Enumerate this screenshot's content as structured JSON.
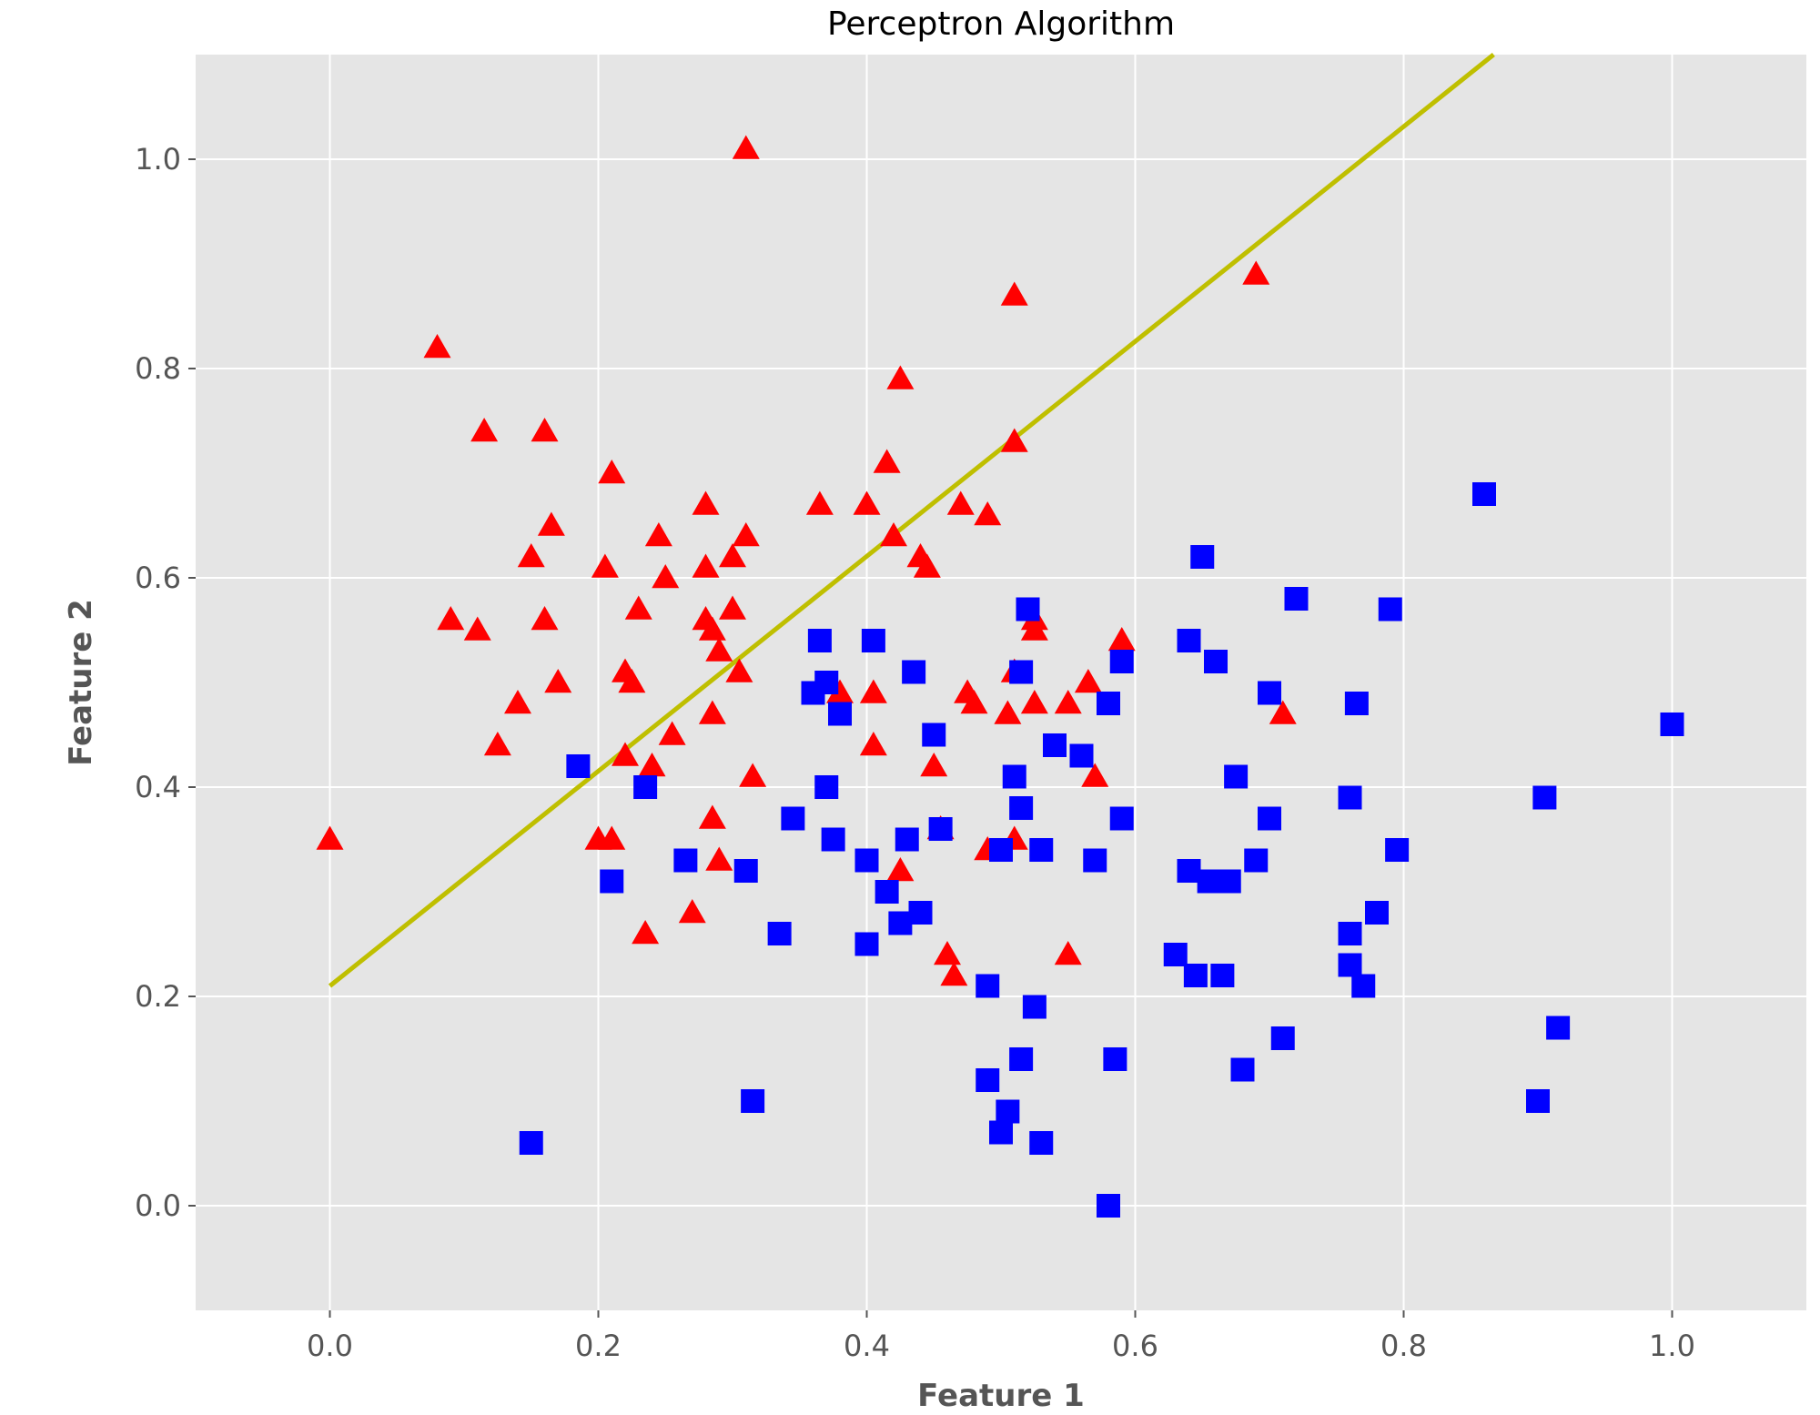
{
  "chart_data": {
    "type": "scatter",
    "title": "Perceptron Algorithm",
    "xlabel": "Feature 1",
    "ylabel": "Feature 2",
    "xlim": [
      -0.1,
      1.1
    ],
    "ylim": [
      -0.1,
      1.1
    ],
    "xticks": [
      "0.0",
      "0.2",
      "0.4",
      "0.6",
      "0.8",
      "1.0"
    ],
    "yticks": [
      "0.0",
      "0.2",
      "0.4",
      "0.6",
      "0.8",
      "1.0"
    ],
    "grid": true,
    "style": "ggplot",
    "background": "#e5e5e5",
    "series": [
      {
        "marker": "triangle",
        "color": "#ff0000",
        "points": [
          [
            0.0,
            0.35
          ],
          [
            0.08,
            0.82
          ],
          [
            0.09,
            0.56
          ],
          [
            0.11,
            0.55
          ],
          [
            0.115,
            0.74
          ],
          [
            0.125,
            0.44
          ],
          [
            0.14,
            0.48
          ],
          [
            0.15,
            0.62
          ],
          [
            0.16,
            0.74
          ],
          [
            0.165,
            0.65
          ],
          [
            0.16,
            0.56
          ],
          [
            0.17,
            0.5
          ],
          [
            0.2,
            0.35
          ],
          [
            0.205,
            0.61
          ],
          [
            0.21,
            0.7
          ],
          [
            0.21,
            0.35
          ],
          [
            0.22,
            0.51
          ],
          [
            0.22,
            0.43
          ],
          [
            0.225,
            0.5
          ],
          [
            0.23,
            0.57
          ],
          [
            0.235,
            0.26
          ],
          [
            0.24,
            0.42
          ],
          [
            0.245,
            0.64
          ],
          [
            0.25,
            0.6
          ],
          [
            0.255,
            0.45
          ],
          [
            0.27,
            0.28
          ],
          [
            0.28,
            0.67
          ],
          [
            0.28,
            0.61
          ],
          [
            0.28,
            0.56
          ],
          [
            0.285,
            0.55
          ],
          [
            0.285,
            0.47
          ],
          [
            0.285,
            0.37
          ],
          [
            0.29,
            0.53
          ],
          [
            0.29,
            0.33
          ],
          [
            0.3,
            0.62
          ],
          [
            0.3,
            0.57
          ],
          [
            0.305,
            0.51
          ],
          [
            0.31,
            1.01
          ],
          [
            0.31,
            0.64
          ],
          [
            0.315,
            0.41
          ],
          [
            0.365,
            0.67
          ],
          [
            0.38,
            0.49
          ],
          [
            0.4,
            0.67
          ],
          [
            0.405,
            0.49
          ],
          [
            0.405,
            0.44
          ],
          [
            0.415,
            0.71
          ],
          [
            0.42,
            0.64
          ],
          [
            0.425,
            0.79
          ],
          [
            0.425,
            0.32
          ],
          [
            0.44,
            0.62
          ],
          [
            0.445,
            0.61
          ],
          [
            0.45,
            0.42
          ],
          [
            0.455,
            0.36
          ],
          [
            0.46,
            0.24
          ],
          [
            0.465,
            0.22
          ],
          [
            0.47,
            0.67
          ],
          [
            0.475,
            0.49
          ],
          [
            0.48,
            0.48
          ],
          [
            0.49,
            0.66
          ],
          [
            0.49,
            0.34
          ],
          [
            0.505,
            0.47
          ],
          [
            0.51,
            0.87
          ],
          [
            0.51,
            0.73
          ],
          [
            0.51,
            0.51
          ],
          [
            0.51,
            0.35
          ],
          [
            0.525,
            0.48
          ],
          [
            0.525,
            0.56
          ],
          [
            0.525,
            0.55
          ],
          [
            0.55,
            0.48
          ],
          [
            0.55,
            0.24
          ],
          [
            0.565,
            0.5
          ],
          [
            0.57,
            0.41
          ],
          [
            0.59,
            0.54
          ],
          [
            0.69,
            0.89
          ],
          [
            0.71,
            0.47
          ]
        ]
      },
      {
        "marker": "square",
        "color": "#0000ff",
        "points": [
          [
            0.15,
            0.06
          ],
          [
            0.185,
            0.42
          ],
          [
            0.21,
            0.31
          ],
          [
            0.235,
            0.4
          ],
          [
            0.265,
            0.33
          ],
          [
            0.31,
            0.32
          ],
          [
            0.315,
            0.1
          ],
          [
            0.335,
            0.26
          ],
          [
            0.345,
            0.37
          ],
          [
            0.36,
            0.49
          ],
          [
            0.365,
            0.54
          ],
          [
            0.37,
            0.5
          ],
          [
            0.37,
            0.4
          ],
          [
            0.375,
            0.35
          ],
          [
            0.38,
            0.47
          ],
          [
            0.4,
            0.33
          ],
          [
            0.4,
            0.25
          ],
          [
            0.405,
            0.54
          ],
          [
            0.415,
            0.3
          ],
          [
            0.425,
            0.27
          ],
          [
            0.43,
            0.35
          ],
          [
            0.435,
            0.51
          ],
          [
            0.44,
            0.28
          ],
          [
            0.45,
            0.45
          ],
          [
            0.455,
            0.36
          ],
          [
            0.49,
            0.21
          ],
          [
            0.49,
            0.12
          ],
          [
            0.5,
            0.34
          ],
          [
            0.5,
            0.07
          ],
          [
            0.505,
            0.09
          ],
          [
            0.51,
            0.41
          ],
          [
            0.515,
            0.38
          ],
          [
            0.515,
            0.51
          ],
          [
            0.515,
            0.14
          ],
          [
            0.52,
            0.57
          ],
          [
            0.525,
            0.19
          ],
          [
            0.53,
            0.34
          ],
          [
            0.53,
            0.06
          ],
          [
            0.54,
            0.44
          ],
          [
            0.56,
            0.43
          ],
          [
            0.57,
            0.33
          ],
          [
            0.58,
            0.48
          ],
          [
            0.58,
            0.0
          ],
          [
            0.585,
            0.14
          ],
          [
            0.59,
            0.37
          ],
          [
            0.59,
            0.52
          ],
          [
            0.63,
            0.24
          ],
          [
            0.64,
            0.54
          ],
          [
            0.64,
            0.32
          ],
          [
            0.645,
            0.22
          ],
          [
            0.65,
            0.62
          ],
          [
            0.655,
            0.31
          ],
          [
            0.66,
            0.52
          ],
          [
            0.665,
            0.22
          ],
          [
            0.67,
            0.31
          ],
          [
            0.675,
            0.41
          ],
          [
            0.68,
            0.13
          ],
          [
            0.69,
            0.33
          ],
          [
            0.7,
            0.37
          ],
          [
            0.7,
            0.49
          ],
          [
            0.71,
            0.16
          ],
          [
            0.72,
            0.58
          ],
          [
            0.76,
            0.39
          ],
          [
            0.76,
            0.26
          ],
          [
            0.76,
            0.23
          ],
          [
            0.765,
            0.48
          ],
          [
            0.77,
            0.21
          ],
          [
            0.78,
            0.28
          ],
          [
            0.79,
            0.57
          ],
          [
            0.795,
            0.34
          ],
          [
            0.86,
            0.68
          ],
          [
            0.9,
            0.1
          ],
          [
            0.905,
            0.39
          ],
          [
            0.915,
            0.17
          ],
          [
            1.0,
            0.46
          ]
        ]
      }
    ],
    "decision_boundary": {
      "color": "#bfbf00",
      "x": [
        0.0,
        0.867
      ],
      "y": [
        0.21,
        1.1
      ]
    }
  }
}
